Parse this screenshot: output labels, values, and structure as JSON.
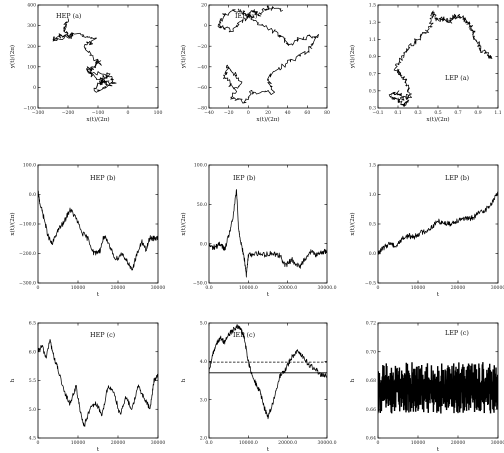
{
  "chart_data": [
    {
      "type": "line",
      "title": "HEP (a)",
      "xlabel": "x(t)/(2π)",
      "ylabel": "y(t)/(2π)",
      "xlim": [
        -300,
        100
      ],
      "ylim": [
        -100,
        400
      ],
      "xticks": [
        "−300",
        "−200",
        "−100",
        "0",
        "100"
      ],
      "yticks": [
        "−100",
        "0",
        "100",
        "200",
        "300",
        "400"
      ],
      "series": [
        {
          "x": [
            -200,
            -215,
            -185,
            -230,
            -250,
            -160,
            -110,
            -150,
            -95,
            -140,
            -100,
            -60,
            -110,
            -75,
            -45,
            -90,
            -60,
            -130,
            -90
          ],
          "y": [
            335,
            280,
            245,
            250,
            230,
            260,
            230,
            200,
            115,
            85,
            40,
            5,
            -15,
            60,
            25,
            20,
            60,
            75,
            130
          ]
        }
      ]
    },
    {
      "type": "line",
      "title": "IEP (a)",
      "xlabel": "x(t)/(2π)",
      "ylabel": "y(t)/(2π)",
      "xlim": [
        -40,
        80
      ],
      "ylim": [
        -80,
        20
      ],
      "xticks": [
        "−40",
        "−20",
        "0",
        "20",
        "40",
        "60",
        "80"
      ],
      "yticks": [
        "−80",
        "−60",
        "−40",
        "−20",
        "0",
        "20"
      ],
      "series": [
        {
          "x": [
            -15,
            -25,
            -20,
            -8,
            -18,
            -3,
            2,
            25,
            20,
            40,
            60,
            70,
            55,
            40,
            30,
            10,
            0,
            -10,
            -25,
            -30,
            -18,
            -5,
            5,
            10,
            20,
            35
          ],
          "y": [
            -60,
            -50,
            -40,
            -55,
            -70,
            -75,
            -65,
            -65,
            -50,
            -35,
            -25,
            -10,
            -12,
            -18,
            -8,
            2,
            10,
            15,
            10,
            0,
            -5,
            5,
            15,
            10,
            18,
            15
          ]
        }
      ]
    },
    {
      "type": "line",
      "title": "LEP (a)",
      "xlabel": "x(t)/(2π)",
      "ylabel": "y(t)/(2π)",
      "xlim": [
        -0.1,
        1.1
      ],
      "ylim": [
        0.3,
        1.5
      ],
      "xticks": [
        "−0.1",
        "0.1",
        "0.3",
        "0.5",
        "0.7",
        "0.9",
        "1.1"
      ],
      "yticks": [
        "0.3",
        "0.5",
        "0.7",
        "0.9",
        "1.1",
        "1.3",
        "1.5"
      ],
      "series": [
        {
          "x": [
            0.2,
            0.15,
            0.08,
            0.03,
            0.1,
            0.15,
            0.22,
            0.18,
            0.12,
            0.08,
            0.15,
            0.25,
            0.35,
            0.43,
            0.45,
            0.5,
            0.55,
            0.62,
            0.68,
            0.75,
            0.8,
            0.85,
            0.87,
            0.93,
            1.0,
            1.03
          ],
          "y": [
            0.38,
            0.33,
            0.4,
            0.45,
            0.48,
            0.4,
            0.45,
            0.6,
            0.7,
            0.75,
            0.9,
            1.05,
            1.15,
            1.25,
            1.42,
            1.32,
            1.35,
            1.3,
            1.38,
            1.35,
            1.3,
            1.2,
            1.1,
            0.98,
            0.92,
            0.88
          ]
        }
      ]
    },
    {
      "type": "line",
      "title": "HEP (b)",
      "xlabel": "t",
      "ylabel": "x(t)/(2π)",
      "xlim": [
        0,
        30000
      ],
      "ylim": [
        -300,
        100
      ],
      "xticks": [
        "0",
        "10000",
        "20000",
        "30000"
      ],
      "yticks": [
        "−300.0",
        "−200.0",
        "−100.0",
        "0.0",
        "100.0"
      ],
      "series": [
        {
          "x": [
            0,
            500,
            1500,
            2500,
            3500,
            5000,
            6500,
            8000,
            9500,
            11000,
            12500,
            14000,
            15500,
            16500,
            18000,
            19500,
            21000,
            22500,
            23500,
            24500,
            26000,
            27000,
            28000,
            29000,
            30000
          ],
          "y": [
            10,
            -30,
            -80,
            -140,
            -170,
            -120,
            -95,
            -50,
            -80,
            -130,
            -150,
            -200,
            -190,
            -140,
            -180,
            -220,
            -200,
            -230,
            -260,
            -210,
            -160,
            -190,
            -145,
            -150,
            -148
          ]
        }
      ]
    },
    {
      "type": "line",
      "title": "IEP (b)",
      "xlabel": "t",
      "ylabel": "x(t)/(2π)",
      "xlim": [
        0,
        30000
      ],
      "ylim": [
        -50,
        100
      ],
      "xticks": [
        "0.0",
        "10000.0",
        "20000.0",
        "30000.0"
      ],
      "yticks": [
        "−50.0",
        "0.0",
        "50.0",
        "100.0"
      ],
      "series": [
        {
          "x": [
            0,
            1000,
            2000,
            3000,
            4000,
            5000,
            6000,
            7000,
            7500,
            8000,
            9000,
            9500,
            10000,
            12000,
            14000,
            16000,
            18000,
            19500,
            21000,
            23000,
            24500,
            26000,
            27500,
            29000,
            30000
          ],
          "y": [
            -2,
            -5,
            -3,
            0,
            -8,
            10,
            30,
            68,
            20,
            5,
            -20,
            -40,
            -15,
            -12,
            -14,
            -12,
            -15,
            -28,
            -20,
            -30,
            -18,
            -10,
            -15,
            -10,
            -10
          ]
        }
      ]
    },
    {
      "type": "line",
      "title": "LEP (b)",
      "xlabel": "t",
      "ylabel": "x(t)/(2π)",
      "xlim": [
        0,
        30000
      ],
      "ylim": [
        -0.5,
        1.5
      ],
      "xticks": [
        "0",
        "10000",
        "20000",
        "30000"
      ],
      "yticks": [
        "−0.5",
        "0.0",
        "0.5",
        "1.0",
        "1.5"
      ],
      "series": [
        {
          "x": [
            0,
            1500,
            3000,
            4500,
            6000,
            7500,
            9000,
            10500,
            12000,
            13500,
            15000,
            16500,
            18000,
            19500,
            21000,
            22500,
            24000,
            25500,
            27000,
            28500,
            30000
          ],
          "y": [
            0.0,
            0.1,
            0.18,
            0.12,
            0.25,
            0.3,
            0.28,
            0.35,
            0.38,
            0.45,
            0.55,
            0.52,
            0.5,
            0.55,
            0.6,
            0.58,
            0.62,
            0.7,
            0.75,
            0.85,
            1.05
          ]
        }
      ]
    },
    {
      "type": "line",
      "title": "HEP (c)",
      "xlabel": "t",
      "ylabel": "h",
      "xlim": [
        0,
        30000
      ],
      "ylim": [
        4.5,
        6.5
      ],
      "xticks": [
        "0",
        "10000",
        "20000",
        "30000"
      ],
      "yticks": [
        "4.5",
        "5.0",
        "5.5",
        "6.0",
        "6.5"
      ],
      "series": [
        {
          "x": [
            0,
            1000,
            2000,
            3000,
            4000,
            5000,
            6500,
            8000,
            9500,
            10500,
            11500,
            13000,
            14500,
            16000,
            17500,
            19000,
            20500,
            22000,
            23500,
            25000,
            26500,
            28000,
            29000,
            30000
          ],
          "y": [
            6.0,
            6.1,
            5.9,
            6.2,
            5.9,
            5.7,
            5.3,
            5.1,
            5.4,
            5.0,
            4.7,
            5.0,
            5.1,
            4.9,
            5.4,
            5.3,
            4.9,
            5.2,
            5.0,
            5.4,
            5.2,
            5.0,
            5.5,
            5.6
          ]
        }
      ]
    },
    {
      "type": "line",
      "title": "IEP (c)",
      "xlabel": "t",
      "ylabel": "h",
      "xlim": [
        0,
        30000
      ],
      "ylim": [
        2.0,
        5.0
      ],
      "xticks": [
        "0.0",
        "10000.0",
        "20000.0",
        "30000.0"
      ],
      "yticks": [
        "2.0",
        "3.0",
        "4.0",
        "5.0"
      ],
      "reference_lines": [
        {
          "y": 3.98,
          "style": "dashed"
        },
        {
          "y": 3.7,
          "style": "solid"
        }
      ],
      "series": [
        {
          "x": [
            0,
            1000,
            2000,
            3000,
            4000,
            5000,
            6000,
            7000,
            8000,
            9000,
            10000,
            11000,
            12000,
            13000,
            14000,
            15000,
            16500,
            18000,
            19500,
            21000,
            22500,
            24000,
            25500,
            27000,
            28500,
            30000
          ],
          "y": [
            3.7,
            4.2,
            4.5,
            4.6,
            4.5,
            4.7,
            4.8,
            4.9,
            4.85,
            4.6,
            4.0,
            3.6,
            3.4,
            3.2,
            2.8,
            2.55,
            3.0,
            3.6,
            3.8,
            4.1,
            4.3,
            4.1,
            3.9,
            3.8,
            3.65,
            3.6
          ]
        }
      ]
    },
    {
      "type": "area",
      "title": "LEP (c)",
      "xlabel": "t",
      "ylabel": "h",
      "xlim": [
        0,
        30000
      ],
      "ylim": [
        0.64,
        0.72
      ],
      "xticks": [
        "0",
        "10000",
        "20000",
        "30000"
      ],
      "yticks": [
        "0.64",
        "0.66",
        "0.68",
        "0.70",
        "0.72"
      ],
      "series": [
        {
          "x": [
            0,
            30000
          ],
          "y_low": [
            0.657,
            0.657
          ],
          "y_high": [
            0.693,
            0.693
          ],
          "y_mean": [
            0.676,
            0.676
          ]
        }
      ]
    }
  ]
}
